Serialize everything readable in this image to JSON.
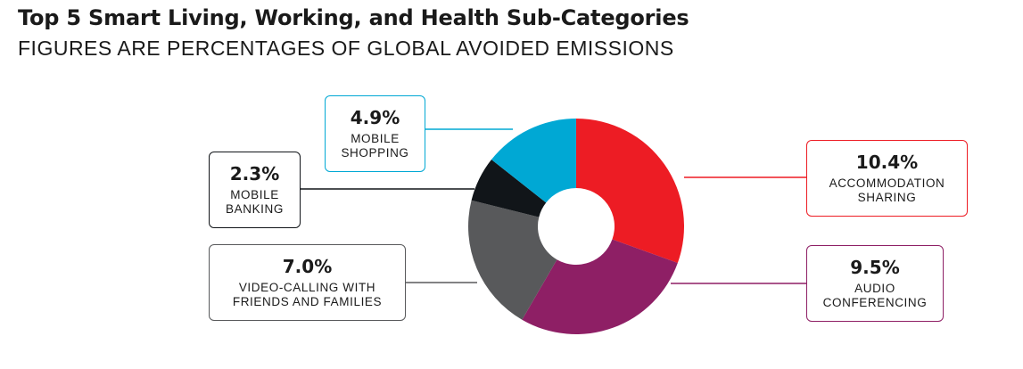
{
  "chart_data": {
    "type": "pie",
    "title": "Top 5 Smart Living, Working, and Health Sub-Categories",
    "subtitle": "FIGURES ARE PERCENTAGES OF GLOBAL AVOIDED EMISSIONS",
    "slices": [
      {
        "label": "ACCOMMODATION\nSHARING",
        "value": 10.4,
        "display": "10.4%",
        "color": "#ed1c24"
      },
      {
        "label": "AUDIO\nCONFERENCING",
        "value": 9.5,
        "display": "9.5%",
        "color": "#8e1f65"
      },
      {
        "label": "VIDEO-CALLING WITH\nFRIENDS AND FAMILIES",
        "value": 7.0,
        "display": "7.0%",
        "color": "#58595b"
      },
      {
        "label": "MOBILE\nBANKING",
        "value": 2.3,
        "display": "2.3%",
        "color": "#111519"
      },
      {
        "label": "MOBILE\nSHOPPING",
        "value": 4.9,
        "display": "4.9%",
        "color": "#00a8d4"
      }
    ]
  }
}
